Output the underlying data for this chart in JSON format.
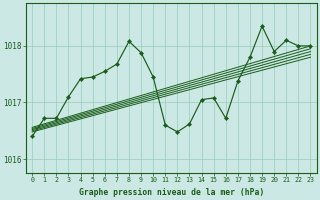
{
  "title": "Graphe pression niveau de la mer (hPa)",
  "background_color": "#cce8e4",
  "line_color": "#1a5c1a",
  "grid_color": "#99ccbb",
  "xlim": [
    -0.5,
    23.5
  ],
  "ylim": [
    1015.75,
    1018.75
  ],
  "yticks": [
    1016,
    1017,
    1018
  ],
  "xticks": [
    0,
    1,
    2,
    3,
    4,
    5,
    6,
    7,
    8,
    9,
    10,
    11,
    12,
    13,
    14,
    15,
    16,
    17,
    18,
    19,
    20,
    21,
    22,
    23
  ],
  "main_y": [
    1016.4,
    1016.72,
    1016.72,
    1017.1,
    1017.42,
    1017.45,
    1017.55,
    1017.68,
    1018.08,
    1017.88,
    1017.45,
    1016.6,
    1016.48,
    1016.62,
    1017.05,
    1017.08,
    1016.72,
    1017.38,
    1017.8,
    1018.35,
    1017.9,
    1018.1,
    1018.0,
    1018.0
  ],
  "straight_lines": [
    {
      "x0": 0,
      "y0": 1016.56,
      "x1": 23,
      "y1": 1018.0
    },
    {
      "x0": 0,
      "y0": 1016.54,
      "x1": 23,
      "y1": 1017.95
    },
    {
      "x0": 0,
      "y0": 1016.52,
      "x1": 23,
      "y1": 1017.9
    },
    {
      "x0": 0,
      "y0": 1016.5,
      "x1": 23,
      "y1": 1017.85
    },
    {
      "x0": 0,
      "y0": 1016.48,
      "x1": 23,
      "y1": 1017.8
    }
  ]
}
